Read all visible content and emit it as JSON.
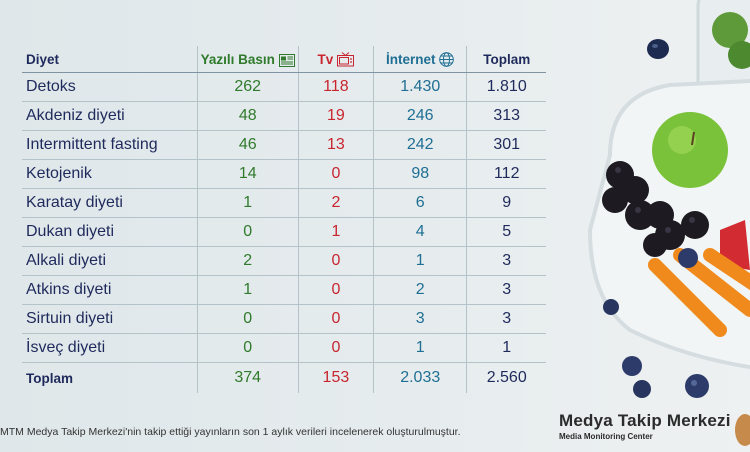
{
  "header": {
    "diet": "Diyet",
    "press": "Yazılı Basın",
    "tv": "Tv",
    "internet": "İnternet",
    "total": "Toplam"
  },
  "rows": [
    {
      "name": "Detoks",
      "press": "262",
      "tv": "118",
      "internet": "1.430",
      "total": "1.810"
    },
    {
      "name": "Akdeniz diyeti",
      "press": "48",
      "tv": "19",
      "internet": "246",
      "total": "313"
    },
    {
      "name": "Intermittent fasting",
      "press": "46",
      "tv": "13",
      "internet": "242",
      "total": "301"
    },
    {
      "name": "Ketojenik",
      "press": "14",
      "tv": "0",
      "internet": "98",
      "total": "112"
    },
    {
      "name": "Karatay diyeti",
      "press": "1",
      "tv": "2",
      "internet": "6",
      "total": "9"
    },
    {
      "name": "Dukan diyeti",
      "press": "0",
      "tv": "1",
      "internet": "4",
      "total": "5"
    },
    {
      "name": "Alkali diyeti",
      "press": "2",
      "tv": "0",
      "internet": "1",
      "total": "3"
    },
    {
      "name": "Atkins diyeti",
      "press": "1",
      "tv": "0",
      "internet": "2",
      "total": "3"
    },
    {
      "name": "Sirtuin diyeti",
      "press": "0",
      "tv": "0",
      "internet": "3",
      "total": "3"
    },
    {
      "name": "İsveç diyeti",
      "press": "0",
      "tv": "0",
      "internet": "1",
      "total": "1"
    }
  ],
  "totals": {
    "label": "Toplam",
    "press": "374",
    "tv": "153",
    "internet": "2.033",
    "total": "2.560"
  },
  "footnote": "MTM Medya Takip Merkezi'nin takip ettiği yayınların son 1 aylık verileri incelenerek oluşturulmuştur.",
  "brand": {
    "name": "Medya Takip Merkezi",
    "subtitle": "Media Monitoring Center"
  },
  "colors": {
    "press": "#2f7a2b",
    "tv": "#c8252e",
    "internet": "#1f6e93",
    "dark": "#1f2a5c"
  },
  "icons": {
    "press": "newspaper-icon",
    "tv": "tv-icon",
    "internet": "globe-icon"
  },
  "chart_data": {
    "type": "table",
    "columns": [
      "Diyet",
      "Yazılı Basın",
      "Tv",
      "İnternet",
      "Toplam"
    ],
    "categories": [
      "Detoks",
      "Akdeniz diyeti",
      "Intermittent fasting",
      "Ketojenik",
      "Karatay diyeti",
      "Dukan diyeti",
      "Alkali diyeti",
      "Atkins diyeti",
      "Sirtuin diyeti",
      "İsveç diyeti"
    ],
    "series": [
      {
        "name": "Yazılı Basın",
        "values": [
          262,
          48,
          46,
          14,
          1,
          0,
          2,
          1,
          0,
          0
        ]
      },
      {
        "name": "Tv",
        "values": [
          118,
          19,
          13,
          0,
          2,
          1,
          0,
          0,
          0,
          0
        ]
      },
      {
        "name": "İnternet",
        "values": [
          1430,
          246,
          242,
          98,
          6,
          4,
          1,
          2,
          3,
          1
        ]
      },
      {
        "name": "Toplam",
        "values": [
          1810,
          313,
          301,
          112,
          9,
          5,
          3,
          3,
          3,
          1
        ]
      }
    ],
    "totals": {
      "Yazılı Basın": 374,
      "Tv": 153,
      "İnternet": 2033,
      "Toplam": 2560
    }
  }
}
